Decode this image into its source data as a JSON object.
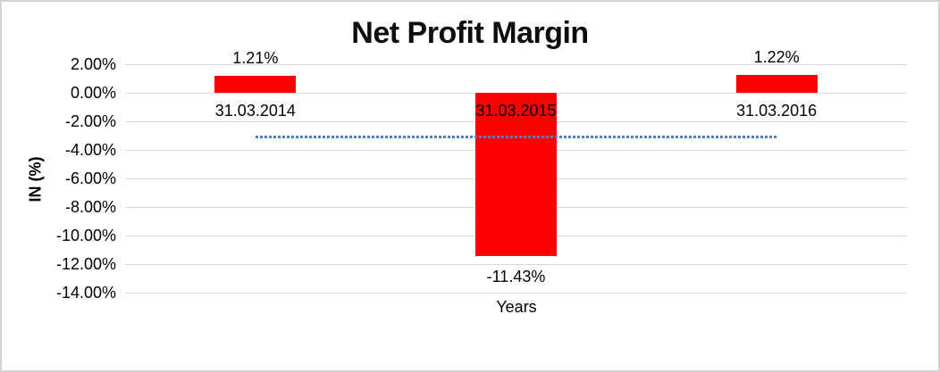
{
  "chart_data": {
    "type": "bar",
    "title": "Net Profit Margin",
    "xlabel": "Years",
    "ylabel": "IN (%)",
    "categories": [
      "31.03.2014",
      "31.03.2015",
      "31.03.2016"
    ],
    "values": [
      1.21,
      -11.43,
      1.22
    ],
    "data_labels": [
      "1.21%",
      "-11.43%",
      "1.22%"
    ],
    "y_ticks": [
      {
        "label": "2.00%",
        "value": 2
      },
      {
        "label": "0.00%",
        "value": 0
      },
      {
        "label": "-2.00%",
        "value": -2
      },
      {
        "label": "-4.00%",
        "value": -4
      },
      {
        "label": "-6.00%",
        "value": -6
      },
      {
        "label": "-8.00%",
        "value": -8
      },
      {
        "label": "-10.00%",
        "value": -10
      },
      {
        "label": "-12.00%",
        "value": -12
      },
      {
        "label": "-14.00%",
        "value": -14
      }
    ],
    "ylim": [
      -14,
      2
    ],
    "grid": true,
    "legend": false,
    "colors": {
      "bar": "#ff0000",
      "gridline": "#d9d9d9",
      "trendline": "#4f81bd",
      "text": "#000000"
    },
    "trendline": {
      "type": "linear",
      "style": "dotted",
      "value": -3.1,
      "from_category_index": 0,
      "to_category_index": 2
    }
  }
}
